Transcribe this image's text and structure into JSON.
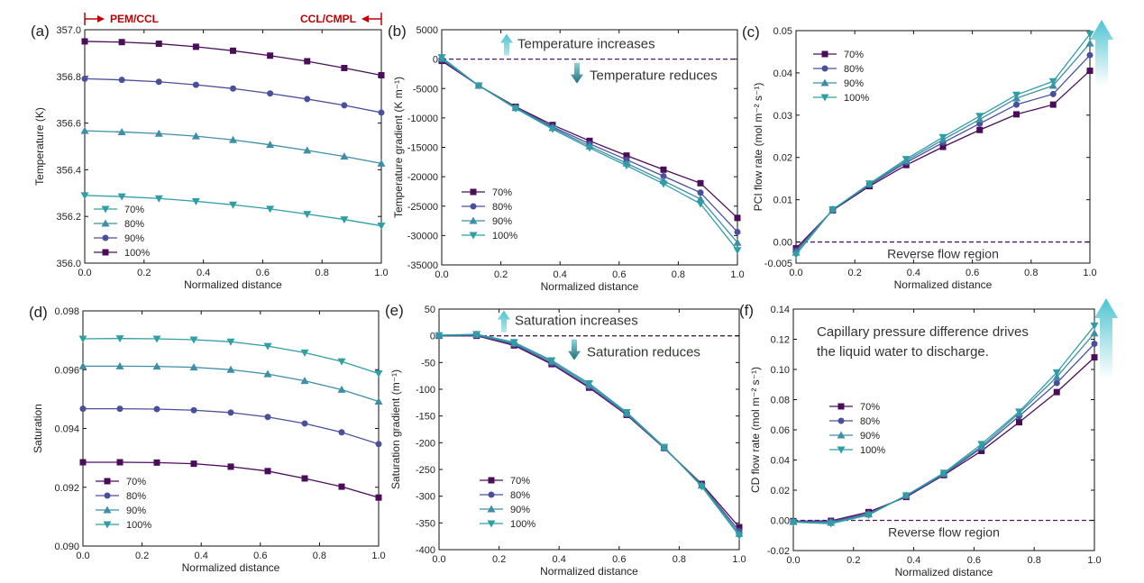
{
  "colors": {
    "s70": "#4b0d5a",
    "s80": "#4a4f9c",
    "s90": "#3e8ea8",
    "s100": "#2f9fa5",
    "accent_red": "#c00000",
    "dashed": "#4b1a6b",
    "arrow_light": "#57c6d3",
    "arrow_dark": "#1f6f78"
  },
  "chart_data": [
    {
      "id": "a",
      "panel_label": "(a)",
      "type": "line",
      "xlabel": "Normalized distance",
      "ylabel": "Temperature (K)",
      "xlim": [
        0,
        1
      ],
      "ylim": [
        356.0,
        357.0
      ],
      "xticks": [
        "0.0",
        "0.2",
        "0.4",
        "0.6",
        "0.8",
        "1.0"
      ],
      "xtick_values": [
        0,
        0.2,
        0.4,
        0.6,
        0.8,
        1.0
      ],
      "yticks": [
        "356.0",
        "356.2",
        "356.4",
        "356.6",
        "356.8",
        "357.0"
      ],
      "ytick_values": [
        356.0,
        356.2,
        356.4,
        356.6,
        356.8,
        357.0
      ],
      "x": [
        0,
        0.125,
        0.25,
        0.375,
        0.5,
        0.625,
        0.75,
        0.875,
        1.0
      ],
      "series": [
        {
          "name": "70%",
          "marker": "tri-down",
          "color_key": "s100",
          "values": [
            356.29,
            356.285,
            356.277,
            356.265,
            356.25,
            356.232,
            356.21,
            356.187,
            356.16
          ]
        },
        {
          "name": "80%",
          "marker": "tri-up",
          "color_key": "s90",
          "values": [
            356.567,
            356.562,
            356.555,
            356.544,
            356.528,
            356.507,
            356.483,
            356.457,
            356.427
          ]
        },
        {
          "name": "90%",
          "marker": "circle",
          "color_key": "s80",
          "values": [
            356.79,
            356.785,
            356.777,
            356.764,
            356.748,
            356.727,
            356.703,
            356.676,
            356.645
          ]
        },
        {
          "name": "100%",
          "marker": "square",
          "color_key": "s70",
          "values": [
            356.95,
            356.947,
            356.94,
            356.927,
            356.91,
            356.889,
            356.865,
            356.836,
            356.805
          ]
        }
      ],
      "legend_position": "bottom-left",
      "top_annotation": {
        "left": "PEM/CCL",
        "right": "CCL/CMPL"
      }
    },
    {
      "id": "b",
      "panel_label": "(b)",
      "type": "line",
      "xlabel": "Normalized distance",
      "ylabel": "Temperature gradient (K m⁻¹)",
      "xlim": [
        0,
        1
      ],
      "ylim": [
        -35000,
        5000
      ],
      "xticks": [
        "0.0",
        "0.2",
        "0.4",
        "0.6",
        "0.8",
        "1.0"
      ],
      "xtick_values": [
        0,
        0.2,
        0.4,
        0.6,
        0.8,
        1.0
      ],
      "yticks": [
        "-35000",
        "-30000",
        "-25000",
        "-20000",
        "-15000",
        "-10000",
        "-5000",
        "0",
        "5000"
      ],
      "ytick_values": [
        -35000,
        -30000,
        -25000,
        -20000,
        -15000,
        -10000,
        -5000,
        0,
        5000
      ],
      "x": [
        0,
        0.125,
        0.25,
        0.375,
        0.5,
        0.625,
        0.75,
        0.875,
        1.0
      ],
      "series": [
        {
          "name": "70%",
          "marker": "square",
          "color_key": "s70",
          "values": [
            -300,
            -4500,
            -8100,
            -11200,
            -13900,
            -16400,
            -18800,
            -21100,
            -27000
          ]
        },
        {
          "name": "80%",
          "marker": "circle",
          "color_key": "s80",
          "values": [
            -100,
            -4500,
            -8200,
            -11500,
            -14400,
            -17100,
            -19900,
            -22700,
            -29400
          ]
        },
        {
          "name": "90%",
          "marker": "tri-up",
          "color_key": "s90",
          "values": [
            100,
            -4500,
            -8300,
            -11700,
            -14800,
            -17700,
            -20700,
            -23800,
            -31200
          ]
        },
        {
          "name": "100%",
          "marker": "tri-down",
          "color_key": "s100",
          "values": [
            300,
            -4500,
            -8400,
            -11900,
            -15100,
            -18100,
            -21200,
            -24600,
            -32500
          ]
        }
      ],
      "reference_line": 0,
      "legend_position": "bottom-left",
      "annotations": {
        "up": "Temperature increases",
        "down": "Temperature reduces"
      }
    },
    {
      "id": "c",
      "panel_label": "(c)",
      "type": "line",
      "xlabel": "Normalized distance",
      "ylabel": "PCI flow rate (mol m⁻² s⁻¹)",
      "xlim": [
        0,
        1
      ],
      "ylim": [
        -0.005,
        0.05
      ],
      "xticks": [
        "0.0",
        "0.2",
        "0.4",
        "0.6",
        "0.8",
        "1.0"
      ],
      "xtick_values": [
        0,
        0.2,
        0.4,
        0.6,
        0.8,
        1.0
      ],
      "yticks": [
        "-0.005",
        "0.00",
        "0.01",
        "0.02",
        "0.03",
        "0.04",
        "0.05"
      ],
      "ytick_values": [
        -0.005,
        0,
        0.01,
        0.02,
        0.03,
        0.04,
        0.05
      ],
      "x": [
        0,
        0.125,
        0.25,
        0.375,
        0.5,
        0.625,
        0.75,
        0.875,
        1.0
      ],
      "series": [
        {
          "name": "70%",
          "marker": "square",
          "color_key": "s70",
          "values": [
            -0.0015,
            0.0075,
            0.0132,
            0.0182,
            0.0225,
            0.0265,
            0.0302,
            0.0325,
            0.0405
          ]
        },
        {
          "name": "80%",
          "marker": "circle",
          "color_key": "s80",
          "values": [
            -0.002,
            0.0076,
            0.0135,
            0.0188,
            0.0235,
            0.028,
            0.0325,
            0.035,
            0.0442
          ]
        },
        {
          "name": "90%",
          "marker": "tri-up",
          "color_key": "s90",
          "values": [
            -0.0025,
            0.0077,
            0.0137,
            0.0192,
            0.0242,
            0.029,
            0.034,
            0.037,
            0.047
          ]
        },
        {
          "name": "100%",
          "marker": "tri-down",
          "color_key": "s100",
          "values": [
            -0.003,
            0.0077,
            0.0138,
            0.0196,
            0.0248,
            0.0298,
            0.0348,
            0.038,
            0.0492
          ]
        }
      ],
      "reference_line": 0,
      "legend_position": "top-left",
      "region_text": "Reverse flow region"
    },
    {
      "id": "d",
      "panel_label": "(d)",
      "type": "line",
      "xlabel": "Normalized distance",
      "ylabel": "Saturation",
      "xlim": [
        0,
        1
      ],
      "ylim": [
        0.09,
        0.098
      ],
      "xticks": [
        "0.0",
        "0.2",
        "0.4",
        "0.6",
        "0.8",
        "1.0"
      ],
      "xtick_values": [
        0,
        0.2,
        0.4,
        0.6,
        0.8,
        1.0
      ],
      "yticks": [
        "0.090",
        "0.092",
        "0.094",
        "0.096",
        "0.098"
      ],
      "ytick_values": [
        0.09,
        0.092,
        0.094,
        0.096,
        0.098
      ],
      "x": [
        0,
        0.125,
        0.25,
        0.375,
        0.5,
        0.625,
        0.75,
        0.875,
        1.0
      ],
      "series": [
        {
          "name": "70%",
          "marker": "square",
          "color_key": "s70",
          "values": [
            0.09285,
            0.09285,
            0.09284,
            0.0928,
            0.0927,
            0.09255,
            0.0923,
            0.09202,
            0.09165
          ]
        },
        {
          "name": "80%",
          "marker": "circle",
          "color_key": "s80",
          "values": [
            0.09467,
            0.09467,
            0.09466,
            0.09462,
            0.09454,
            0.09439,
            0.09417,
            0.09387,
            0.09347
          ]
        },
        {
          "name": "90%",
          "marker": "tri-up",
          "color_key": "s90",
          "values": [
            0.09612,
            0.09612,
            0.09611,
            0.09608,
            0.096,
            0.09585,
            0.09562,
            0.09532,
            0.09492
          ]
        },
        {
          "name": "100%",
          "marker": "tri-down",
          "color_key": "s100",
          "values": [
            0.09705,
            0.09706,
            0.09705,
            0.09702,
            0.09695,
            0.0968,
            0.09658,
            0.09628,
            0.09587
          ]
        }
      ],
      "legend_position": "bottom-left"
    },
    {
      "id": "e",
      "panel_label": "(e)",
      "type": "line",
      "xlabel": "Normalized distance",
      "ylabel": "Saturation gradient (m⁻¹)",
      "xlim": [
        0,
        1
      ],
      "ylim": [
        -400,
        50
      ],
      "xticks": [
        "0.0",
        "0.2",
        "0.4",
        "0.6",
        "0.8",
        "1.0"
      ],
      "xtick_values": [
        0,
        0.2,
        0.4,
        0.6,
        0.8,
        1.0
      ],
      "yticks": [
        "-400",
        "-350",
        "-300",
        "-250",
        "-200",
        "-150",
        "-100",
        "-50",
        "0",
        "50"
      ],
      "ytick_values": [
        -400,
        -350,
        -300,
        -250,
        -200,
        -150,
        -100,
        -50,
        0,
        50
      ],
      "x": [
        0,
        0.125,
        0.25,
        0.375,
        0.5,
        0.625,
        0.75,
        0.875,
        1.0
      ],
      "series": [
        {
          "name": "70%",
          "marker": "square",
          "color_key": "s70",
          "values": [
            0,
            0,
            -18,
            -53,
            -97,
            -148,
            -210,
            -277,
            -358
          ]
        },
        {
          "name": "80%",
          "marker": "circle",
          "color_key": "s80",
          "values": [
            0,
            1,
            -16,
            -51,
            -95,
            -147,
            -210,
            -279,
            -365
          ]
        },
        {
          "name": "90%",
          "marker": "tri-up",
          "color_key": "s90",
          "values": [
            1,
            2,
            -14,
            -48,
            -92,
            -145,
            -209,
            -280,
            -370
          ]
        },
        {
          "name": "100%",
          "marker": "tri-down",
          "color_key": "s100",
          "values": [
            1,
            3,
            -12,
            -46,
            -89,
            -143,
            -208,
            -282,
            -374
          ]
        }
      ],
      "reference_line": 0,
      "legend_position": "bottom-left",
      "annotations": {
        "up": "Saturation increases",
        "down": "Saturation reduces"
      }
    },
    {
      "id": "f",
      "panel_label": "(f)",
      "type": "line",
      "xlabel": "Normalized distance",
      "ylabel": "CD flow rate (mol m⁻² s⁻¹)",
      "xlim": [
        0,
        1
      ],
      "ylim": [
        -0.02,
        0.14
      ],
      "xticks": [
        "0.0",
        "0.2",
        "0.4",
        "0.6",
        "0.8",
        "1.0"
      ],
      "xtick_values": [
        0,
        0.2,
        0.4,
        0.6,
        0.8,
        1.0
      ],
      "yticks": [
        "-0.02",
        "0.00",
        "0.02",
        "0.04",
        "0.06",
        "0.08",
        "0.10",
        "0.12",
        "0.14"
      ],
      "ytick_values": [
        -0.02,
        0,
        0.02,
        0.04,
        0.06,
        0.08,
        0.1,
        0.12,
        0.14
      ],
      "x": [
        0,
        0.125,
        0.25,
        0.375,
        0.5,
        0.625,
        0.75,
        0.875,
        1.0
      ],
      "series": [
        {
          "name": "70%",
          "marker": "square",
          "color_key": "s70",
          "values": [
            -0.0005,
            -0.0003,
            0.0055,
            0.0155,
            0.03,
            0.046,
            0.065,
            0.085,
            0.108
          ]
        },
        {
          "name": "80%",
          "marker": "circle",
          "color_key": "s80",
          "values": [
            -0.0007,
            -0.0007,
            0.0045,
            0.016,
            0.0305,
            0.048,
            0.069,
            0.091,
            0.117
          ]
        },
        {
          "name": "90%",
          "marker": "tri-up",
          "color_key": "s90",
          "values": [
            -0.001,
            -0.0015,
            0.004,
            0.0165,
            0.031,
            0.049,
            0.071,
            0.095,
            0.124
          ]
        },
        {
          "name": "100%",
          "marker": "tri-down",
          "color_key": "s100",
          "values": [
            -0.0012,
            -0.0022,
            0.0035,
            0.0165,
            0.0315,
            0.0505,
            0.072,
            0.098,
            0.129
          ]
        }
      ],
      "reference_line": 0,
      "legend_position": "center-left",
      "region_text": "Reverse flow region",
      "note_lines": [
        "Capillary pressure difference drives",
        "the liquid water to discharge."
      ]
    }
  ]
}
